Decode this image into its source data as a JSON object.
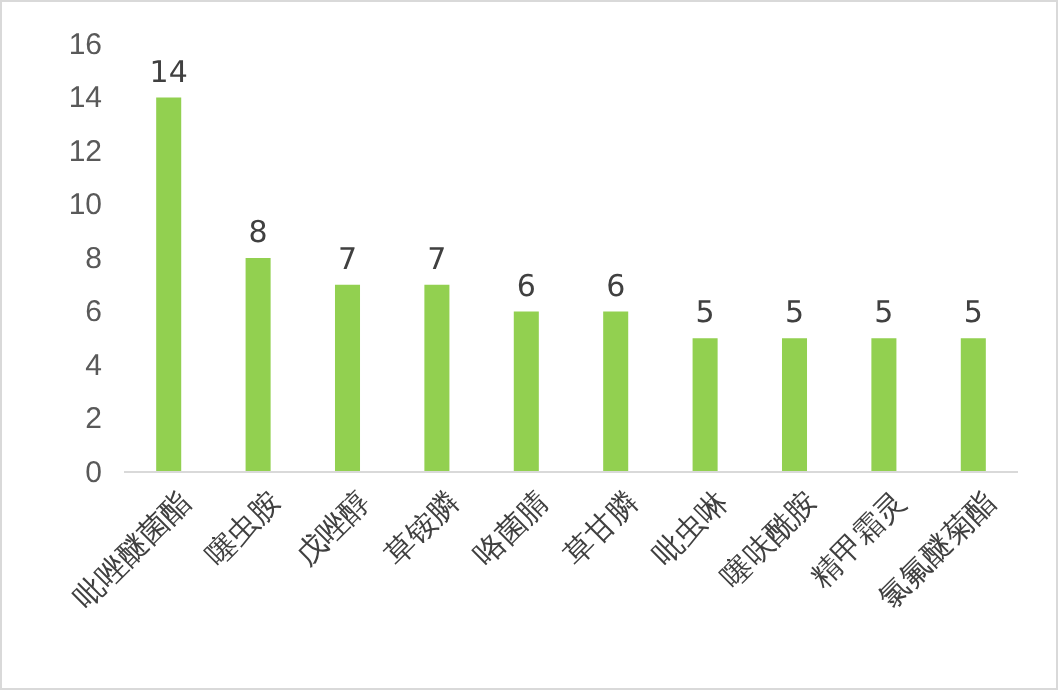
{
  "chart_data": {
    "type": "bar",
    "categories": [
      "吡唑醚菌酯",
      "噻虫胺",
      "戊唑醇",
      "草铵膦",
      "咯菌腈",
      "草甘膦",
      "吡虫啉",
      "噻呋酰胺",
      "精甲霜灵",
      "氯氟醚菊酯"
    ],
    "values": [
      14,
      8,
      7,
      7,
      6,
      6,
      5,
      5,
      5,
      5
    ],
    "color": "#92d050",
    "ylim": [
      0,
      16
    ],
    "yticks": [
      0,
      2,
      4,
      6,
      8,
      10,
      12,
      14,
      16
    ],
    "grid": false,
    "data_labels": true
  }
}
